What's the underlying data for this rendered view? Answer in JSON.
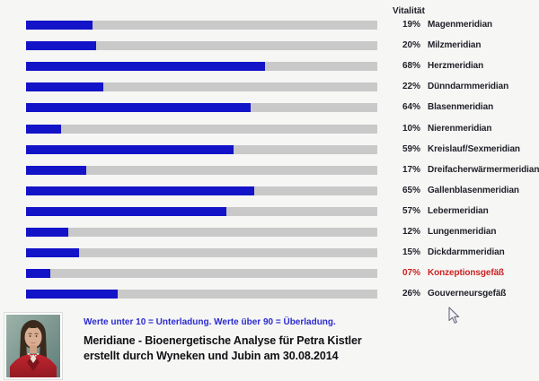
{
  "window": {
    "background": "#f6f6f5"
  },
  "chart": {
    "header": "Vitalität"
  },
  "chart_data": {
    "type": "bar",
    "orientation": "horizontal",
    "title": "Vitalität",
    "xlabel": "",
    "ylabel": "",
    "xlim": [
      0,
      100
    ],
    "unit": "percent",
    "grid": false,
    "legend": "none",
    "colors": {
      "bar": "#1313c8",
      "track": "#c9c9c9",
      "label": "#1f2028",
      "alert": "#cc2222"
    },
    "categories": [
      "Magenmeridian",
      "Milzmeridian",
      "Herzmeridian",
      "Dünndarmmeridian",
      "Blasenmeridian",
      "Nierenmeridian",
      "Kreislauf/Sexmeridian",
      "Dreifacherwärmermeridian",
      "Gallenblasenmeridian",
      "Lebermeridian",
      "Lungenmeridian",
      "Dickdarmmeridian",
      "Konzeptionsgefäß",
      "Gouverneursgefäß"
    ],
    "values": [
      19,
      20,
      68,
      22,
      64,
      10,
      59,
      17,
      65,
      57,
      12,
      15,
      7,
      26
    ],
    "rows": [
      {
        "pct": "19%",
        "value": 19,
        "label": "Magenmeridian",
        "alert": false
      },
      {
        "pct": "20%",
        "value": 20,
        "label": "Milzmeridian",
        "alert": false
      },
      {
        "pct": "68%",
        "value": 68,
        "label": "Herzmeridian",
        "alert": false
      },
      {
        "pct": "22%",
        "value": 22,
        "label": "Dünndarmmeridian",
        "alert": false
      },
      {
        "pct": "64%",
        "value": 64,
        "label": "Blasenmeridian",
        "alert": false
      },
      {
        "pct": "10%",
        "value": 10,
        "label": "Nierenmeridian",
        "alert": false
      },
      {
        "pct": "59%",
        "value": 59,
        "label": "Kreislauf/Sexmeridian",
        "alert": false
      },
      {
        "pct": "17%",
        "value": 17,
        "label": "Dreifacherwärmermeridian",
        "alert": false
      },
      {
        "pct": "65%",
        "value": 65,
        "label": "Gallenblasenmeridian",
        "alert": false
      },
      {
        "pct": "57%",
        "value": 57,
        "label": "Lebermeridian",
        "alert": false
      },
      {
        "pct": "12%",
        "value": 12,
        "label": "Lungenmeridian",
        "alert": false
      },
      {
        "pct": "15%",
        "value": 15,
        "label": "Dickdarmmeridian",
        "alert": false
      },
      {
        "pct": "07%",
        "value": 7,
        "label": "Konzeptionsgefäß",
        "alert": true
      },
      {
        "pct": "26%",
        "value": 26,
        "label": "Gouverneursgefäß",
        "alert": false
      }
    ]
  },
  "footer": {
    "note": "Werte unter 10 = Unterladung. Werte über 90 = Überladung.",
    "title_line1": "Meridiane - Bioenergetische Analyse für Petra Kistler",
    "title_line2": "erstellt durch Wyneken und Jubin am 30.08.2014",
    "photo_alt": "portrait-of-woman"
  },
  "cursor": {
    "icon": "arrow-pointer"
  }
}
